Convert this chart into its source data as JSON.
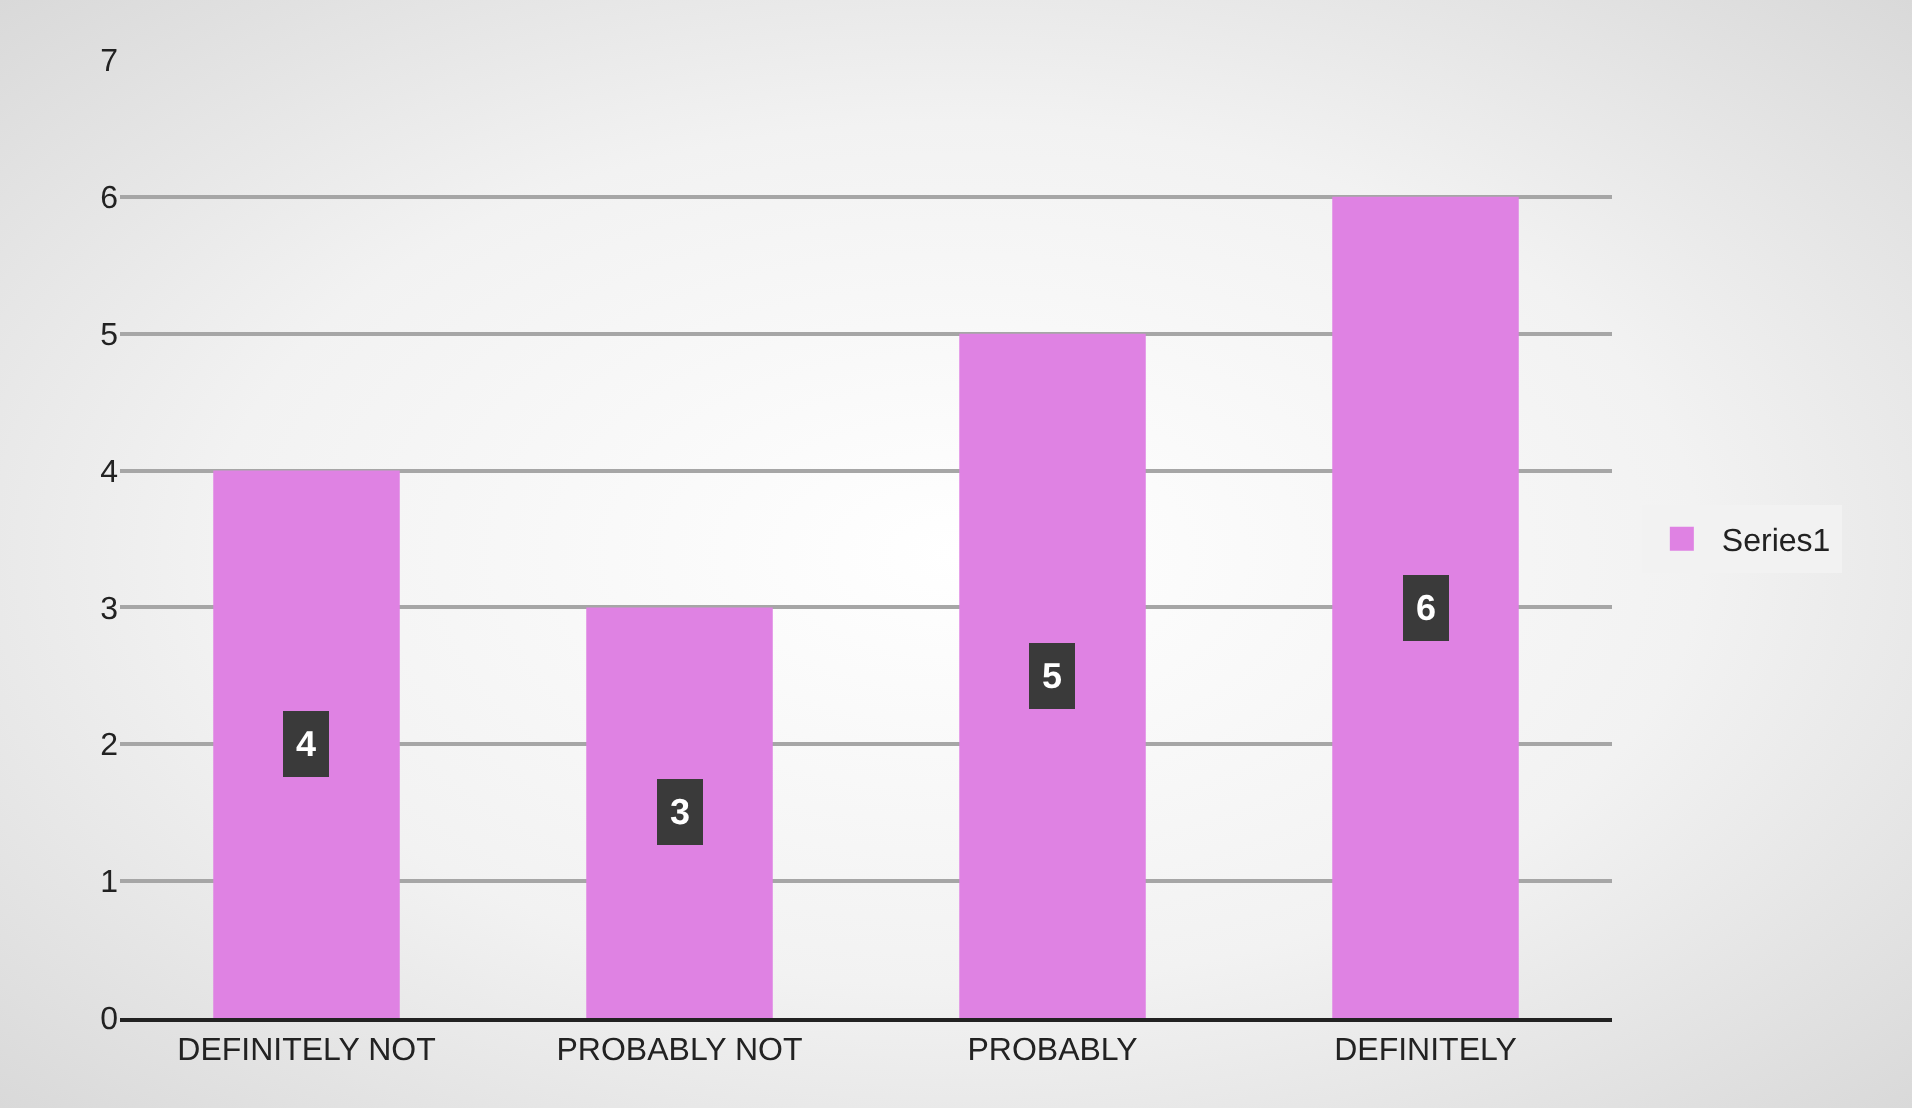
{
  "chart_data": {
    "type": "bar",
    "categories": [
      "DEFINITELY NOT",
      "PROBABLY NOT",
      "PROBABLY",
      "DEFINITELY"
    ],
    "series": [
      {
        "name": "Series1",
        "color": "#df82e3",
        "values": [
          4,
          3,
          5,
          6
        ]
      }
    ],
    "ylim": [
      0,
      7
    ],
    "yticks": [
      0,
      1,
      2,
      3,
      4,
      5,
      6,
      7
    ],
    "grid": "y",
    "legend": "right",
    "data_labels": true
  }
}
